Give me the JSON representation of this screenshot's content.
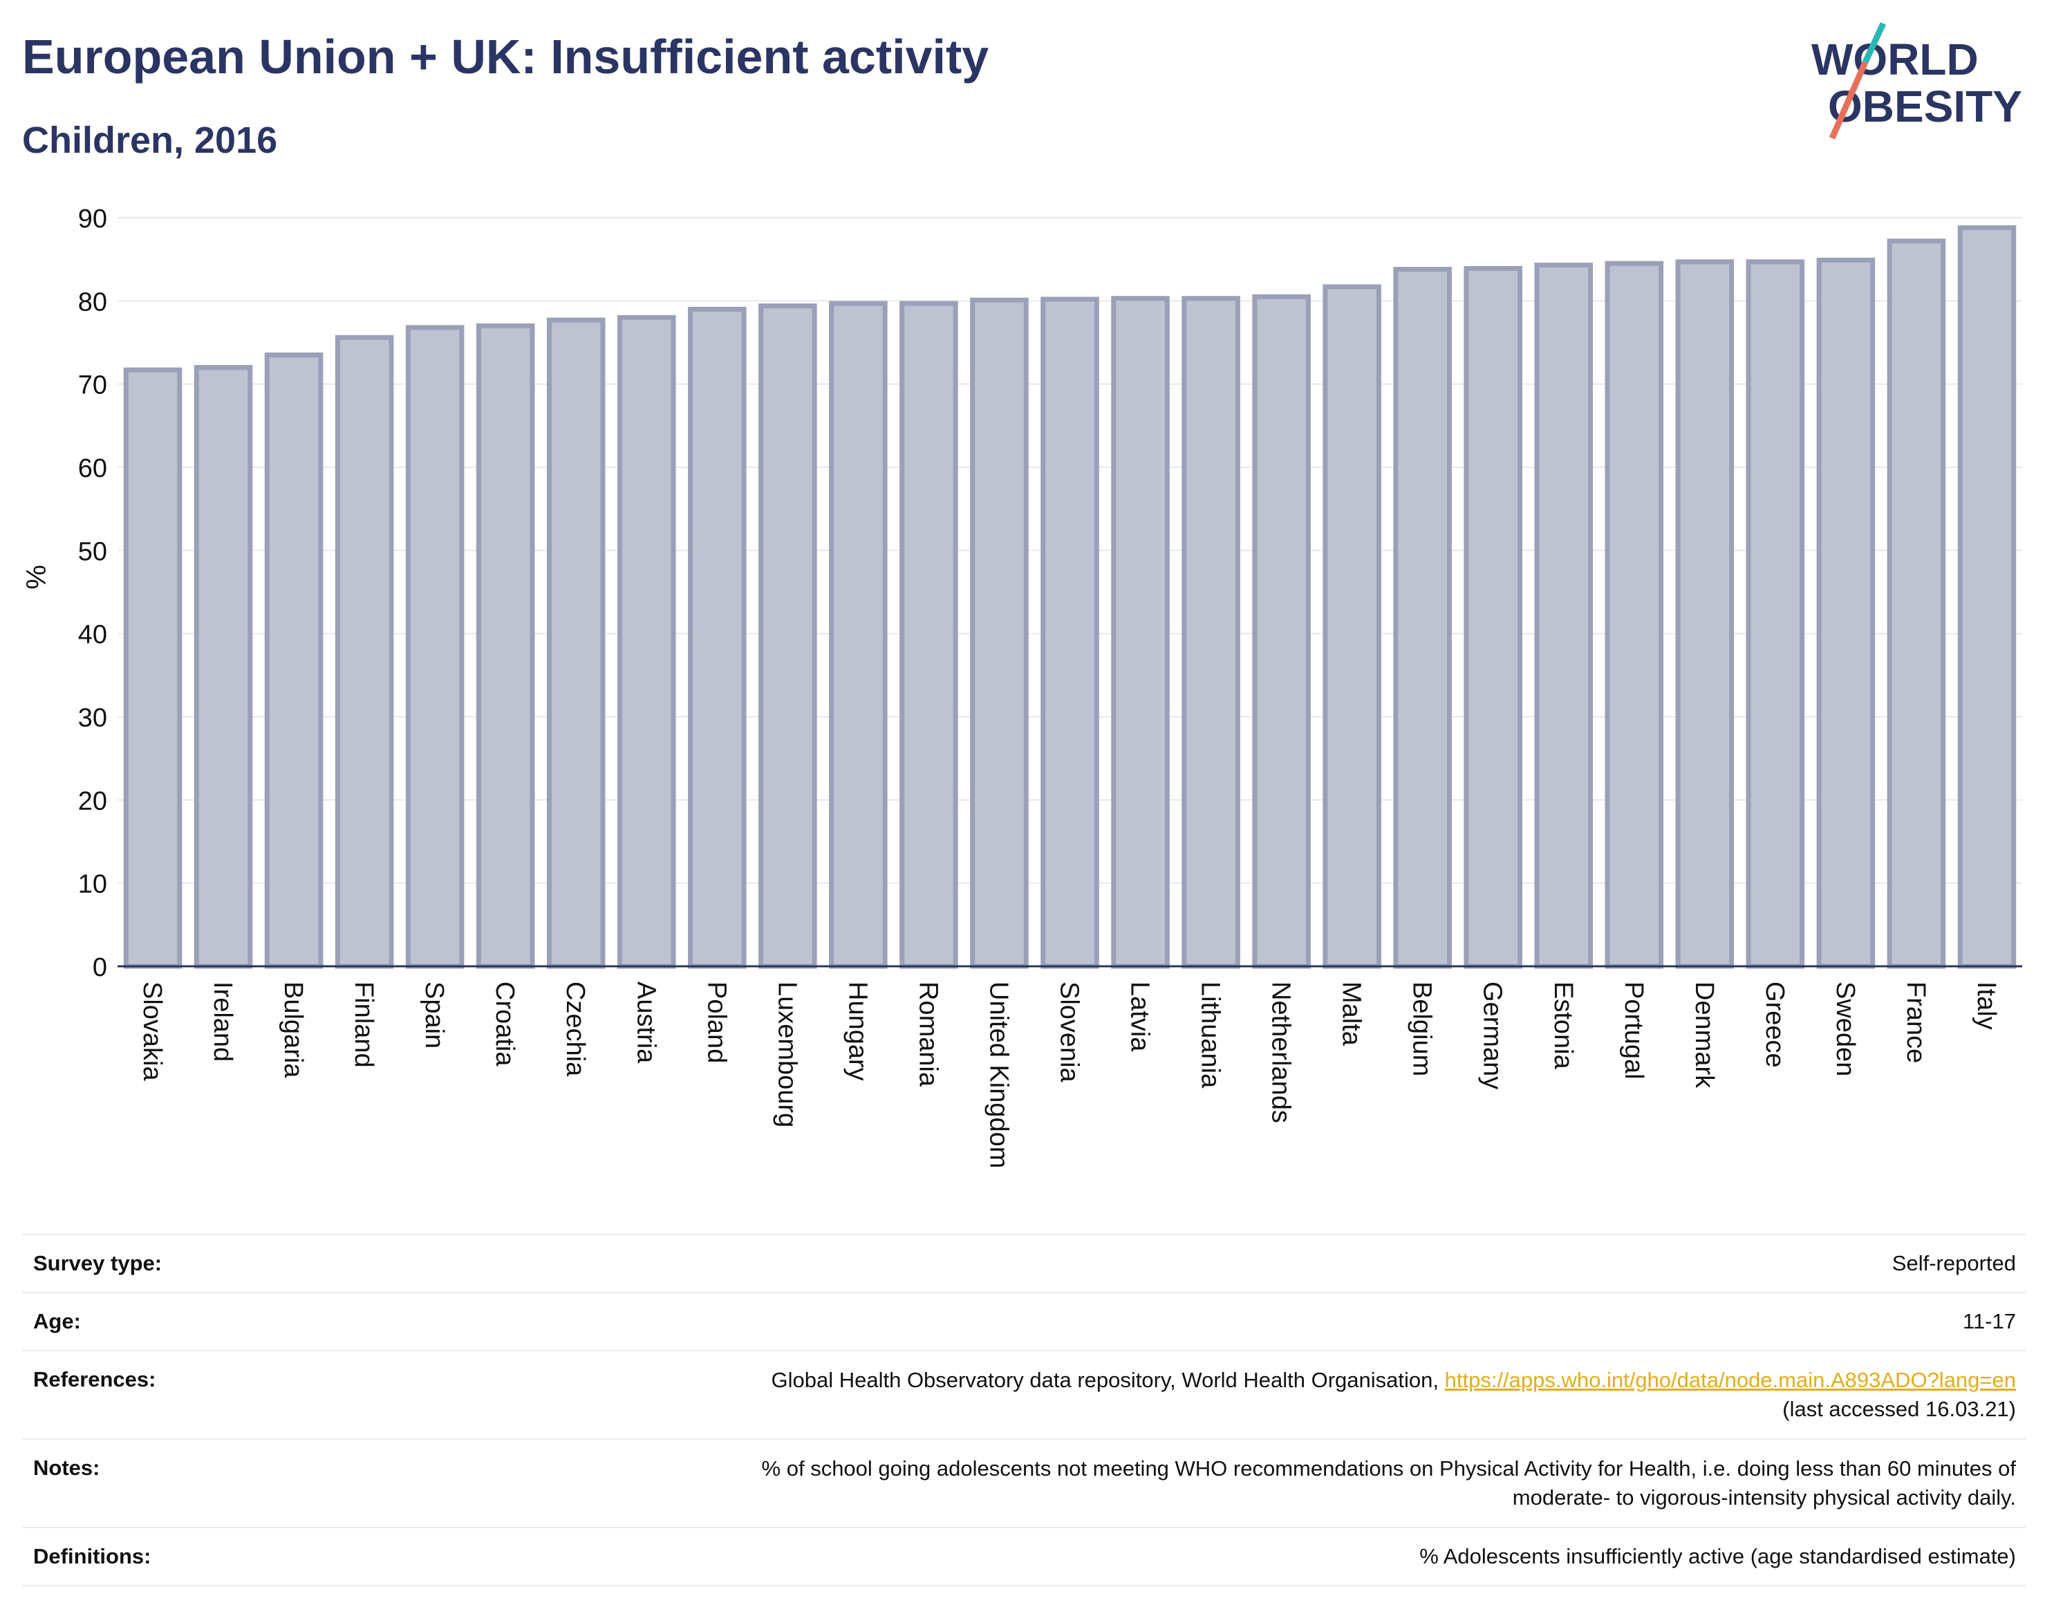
{
  "header": {
    "title": "European Union + UK: Insufficient activity",
    "subtitle": "Children, 2016",
    "logo_line1": "WORLD",
    "logo_line2": "OBESITY"
  },
  "colors": {
    "text": "#2b3563",
    "bar_fill": "#bfc2d1",
    "bar_stroke": "#9aa0b7",
    "grid": "#e6e8ee",
    "link": "#e3ad1b",
    "logo_teal": "#2ab7b2",
    "logo_coral": "#e8705b"
  },
  "chart_data": {
    "type": "bar",
    "title": "",
    "xlabel": "",
    "ylabel": "%",
    "ylim": [
      0,
      90
    ],
    "yticks": [
      0,
      10,
      20,
      30,
      40,
      50,
      60,
      70,
      80,
      90
    ],
    "grid": true,
    "categories": [
      "Slovakia",
      "Ireland",
      "Bulgaria",
      "Finland",
      "Spain",
      "Croatia",
      "Czechia",
      "Austria",
      "Poland",
      "Luxembourg",
      "Hungary",
      "Romania",
      "United Kingdom",
      "Slovenia",
      "Latvia",
      "Lithuania",
      "Netherlands",
      "Malta",
      "Belgium",
      "Germany",
      "Estonia",
      "Portugal",
      "Denmark",
      "Greece",
      "Sweden",
      "France",
      "Italy"
    ],
    "values": [
      71.7,
      72.0,
      73.5,
      75.6,
      76.8,
      77.0,
      77.7,
      78.0,
      79.0,
      79.4,
      79.7,
      79.7,
      80.1,
      80.2,
      80.3,
      80.3,
      80.5,
      81.7,
      83.8,
      83.9,
      84.3,
      84.5,
      84.7,
      84.7,
      84.9,
      87.2,
      88.8
    ]
  },
  "meta": [
    {
      "label": "Survey type:",
      "value": "Self-reported"
    },
    {
      "label": "Age:",
      "value": "11-17"
    },
    {
      "label": "References:",
      "value": "Global Health Observatory data repository, World Health Organisation,",
      "link": "https://apps.who.int/gho/data/node.main.A893ADO?lang=en",
      "value2": "(last accessed 16.03.21)"
    },
    {
      "label": "Notes:",
      "value": "% of school going adolescents not meeting WHO recommendations on Physical Activity for Health, i.e. doing less than 60 minutes of",
      "value2": "moderate- to vigorous-intensity physical activity daily."
    },
    {
      "label": "Definitions:",
      "value": "% Adolescents insufficiently active (age standardised estimate)"
    }
  ]
}
